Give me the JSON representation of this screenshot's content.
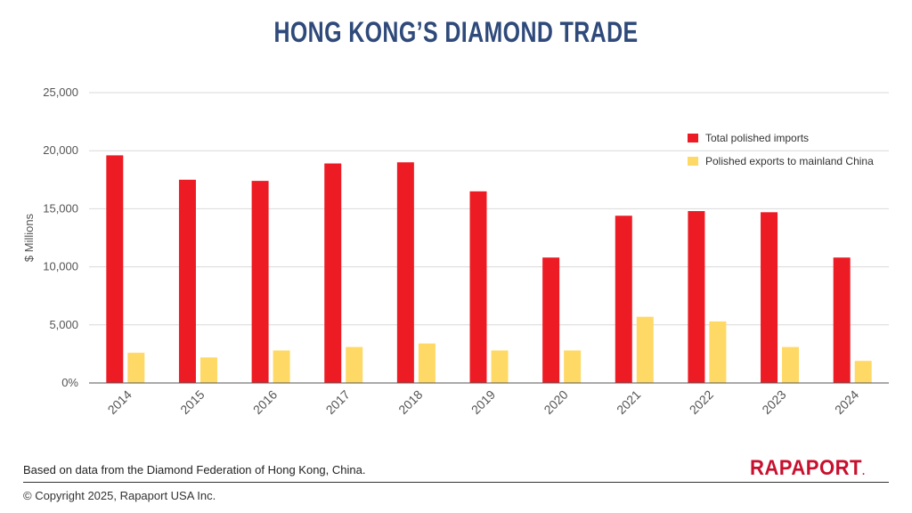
{
  "colors": {
    "title": "#2f4a7a",
    "imports": "#ed1c24",
    "exports": "#ffd966",
    "grid": "#d9d9d9",
    "axis": "#555555",
    "logo": "#c8102e"
  },
  "footer": {
    "source": "Based on data from the Diamond Federation of Hong Kong, China.",
    "copyright": "© Copyright 2025, Rapaport USA Inc.",
    "logo": "RAPAPORT",
    "logo_mark": "."
  },
  "chart_data": {
    "type": "bar",
    "title": "HONG KONG’S DIAMOND TRADE",
    "xlabel": "",
    "ylabel": "$ Millions",
    "ylim": [
      0,
      25000
    ],
    "y_ticks": [
      0,
      5000,
      10000,
      15000,
      20000,
      25000
    ],
    "y_tick_labels": [
      "0%",
      "5,000",
      "10,000",
      "15,000",
      "20,000",
      "25,000"
    ],
    "grid": true,
    "legend_position": "top-right",
    "categories": [
      "2014",
      "2015",
      "2016",
      "2017",
      "2018",
      "2019",
      "2020",
      "2021",
      "2022",
      "2023",
      "2024"
    ],
    "series": [
      {
        "name": "Total polished imports",
        "color": "#ed1c24",
        "values": [
          19600,
          17500,
          17400,
          18900,
          19000,
          16500,
          10800,
          14400,
          14800,
          14700,
          10800
        ]
      },
      {
        "name": "Polished exports to mainland China",
        "color": "#ffd966",
        "values": [
          2600,
          2200,
          2800,
          3100,
          3400,
          2800,
          2800,
          5700,
          5300,
          3100,
          1900
        ]
      }
    ]
  }
}
